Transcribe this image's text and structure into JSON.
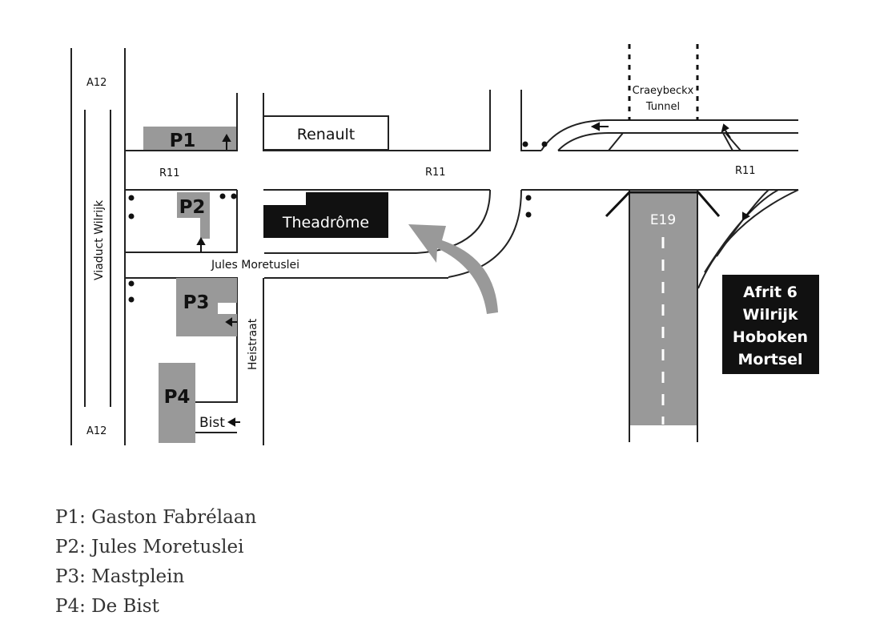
{
  "map": {
    "roads": {
      "a12_top": "A12",
      "a12_bottom": "A12",
      "viaduct": "Viaduct Wilrijk",
      "r11_left": "R11",
      "r11_middle": "R11",
      "r11_right": "R11",
      "jules": "Jules Moretuslei",
      "heistraat": "Heistraat",
      "bist": "Bist",
      "e19": "E19"
    },
    "tunnel": [
      "Craeybeckx",
      "Tunnel"
    ],
    "buildings": {
      "renault": "Renault",
      "theadrome": "Theadrôme"
    },
    "parking": {
      "p1": "P1",
      "p2": "P2",
      "p3": "P3",
      "p4": "P4"
    },
    "exit_sign": [
      "Afrit 6",
      "Wilrijk",
      "Hoboken",
      "Mortsel"
    ],
    "colors": {
      "parking_fill": "#999999",
      "building_dark": "#111111",
      "route_arrow": "#999999",
      "highway_fill": "#999999"
    }
  },
  "legend": [
    "P1: Gaston Fabrélaan",
    "P2: Jules Moretuslei",
    "P3: Mastplein",
    "P4: De Bist"
  ]
}
